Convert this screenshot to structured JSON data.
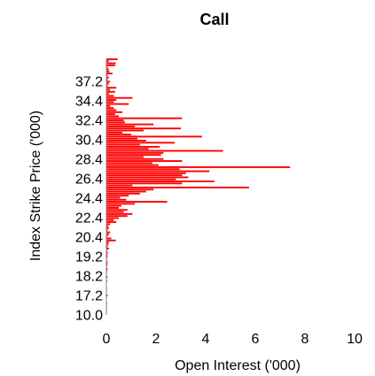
{
  "chart_data": {
    "type": "bar",
    "orientation": "horizontal",
    "title": "Call",
    "xlabel": "Open Interest ('000)",
    "ylabel": "Index Strike Price ('000)",
    "xlim": [
      0,
      10
    ],
    "x_ticks": [
      "0",
      "2",
      "4",
      "6",
      "8",
      "10"
    ],
    "y_tick_labels": [
      "10.0",
      "17.2",
      "18.2",
      "19.2",
      "20.4",
      "22.4",
      "24.4",
      "26.4",
      "28.4",
      "30.4",
      "32.4",
      "34.4",
      "37.2"
    ],
    "grid": false,
    "legend": "none",
    "bar_color": "#ff0000",
    "series": [
      {
        "values": [
          0.0,
          0.02,
          0.0,
          0.0,
          0.0,
          0.03,
          0.0,
          0.0,
          0.0,
          0.05,
          0.0,
          0.0,
          0.0,
          0.02,
          0.0,
          0.0,
          0.03,
          0.0,
          0.05,
          0.0,
          0.02,
          0.03,
          0.05,
          0.02,
          0.04,
          0.05,
          0.03,
          0.02,
          0.05,
          0.04,
          0.06,
          0.03,
          0.1,
          0.05,
          0.08,
          0.1,
          0.38,
          0.2,
          0.05,
          0.1,
          0.15,
          0.05,
          0.1,
          0.08,
          0.15,
          0.4,
          0.3,
          0.5,
          0.85,
          1.05,
          0.7,
          0.85,
          0.5,
          0.6,
          1.15,
          2.45,
          0.8,
          0.55,
          0.9,
          1.35,
          1.6,
          1.9,
          5.75,
          1.05,
          3.05,
          4.35,
          2.8,
          3.3,
          3.05,
          3.2,
          4.15,
          2.95,
          7.4,
          2.1,
          1.85,
          3.05,
          2.3,
          1.5,
          2.2,
          2.3,
          4.7,
          1.7,
          2.15,
          1.35,
          2.75,
          1.6,
          1.25,
          3.85,
          1.0,
          0.65,
          1.5,
          3.0,
          1.15,
          1.9,
          0.75,
          0.7,
          3.05,
          0.5,
          0.35,
          0.65,
          0.4,
          0.3,
          0.15,
          0.9,
          0.3,
          0.4,
          1.05,
          0.3,
          0.1,
          0.35,
          0.15,
          0.4,
          0.05,
          0.1,
          0.15,
          0.05,
          0.1,
          0.05,
          0.25,
          0.12,
          0.1,
          0.05,
          0.35,
          0.38,
          0.1,
          0.45
        ]
      }
    ]
  }
}
